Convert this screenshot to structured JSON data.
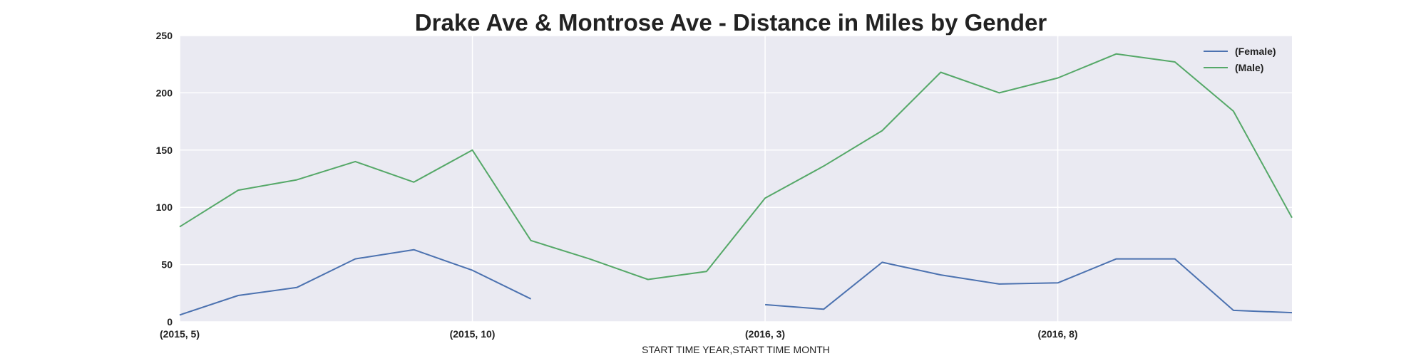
{
  "chart_data": {
    "type": "line",
    "title": "Drake Ave & Montrose Ave - Distance in Miles by Gender",
    "xlabel": "START TIME YEAR,START TIME MONTH",
    "ylabel": "",
    "ylim": [
      0,
      250
    ],
    "yticks": [
      "0",
      "50",
      "100",
      "150",
      "200",
      "250"
    ],
    "x_tick_labels": [
      {
        "index": 0,
        "label": "(2015, 5)"
      },
      {
        "index": 5,
        "label": "(2015, 10)"
      },
      {
        "index": 10,
        "label": "(2016, 3)"
      },
      {
        "index": 15,
        "label": "(2016, 8)"
      }
    ],
    "categories": [
      "(2015, 5)",
      "(2015, 6)",
      "(2015, 7)",
      "(2015, 8)",
      "(2015, 9)",
      "(2015, 10)",
      "(2015, 11)",
      "(2015, 12)",
      "(2016, 1)",
      "(2016, 2)",
      "(2016, 3)",
      "(2016, 4)",
      "(2016, 5)",
      "(2016, 6)",
      "(2016, 7)",
      "(2016, 8)",
      "(2016, 9)",
      "(2016, 10)",
      "(2016, 11)",
      "(2016, 12)"
    ],
    "series": [
      {
        "name": "(Female)",
        "color": "#4c72b0",
        "values": [
          6,
          23,
          30,
          55,
          63,
          45,
          20,
          null,
          null,
          null,
          15,
          11,
          52,
          41,
          33,
          34,
          55,
          55,
          10,
          8
        ]
      },
      {
        "name": "(Male)",
        "color": "#55a868",
        "values": [
          83,
          115,
          124,
          140,
          122,
          150,
          71,
          55,
          37,
          44,
          108,
          136,
          167,
          218,
          200,
          213,
          234,
          227,
          184,
          91
        ]
      }
    ],
    "grid": true,
    "legend": "top-right",
    "background": "#eaeaf2"
  }
}
